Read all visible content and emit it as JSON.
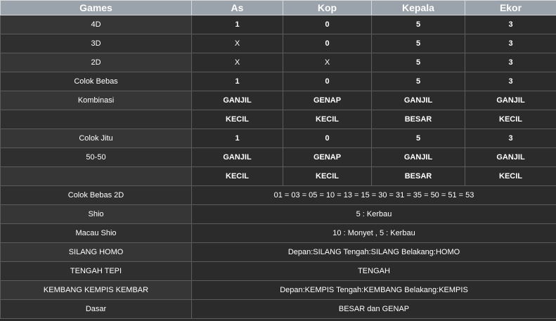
{
  "headers": [
    "Games",
    "As",
    "Kop",
    "Kepala",
    "Ekor"
  ],
  "rows": [
    {
      "game": "4D",
      "values": [
        "1",
        "0",
        "5",
        "3"
      ]
    },
    {
      "game": "3D",
      "values": [
        "X",
        "0",
        "5",
        "3"
      ]
    },
    {
      "game": "2D",
      "values": [
        "X",
        "X",
        "5",
        "3"
      ]
    },
    {
      "game": "Colok Bebas",
      "values": [
        "1",
        "0",
        "5",
        "3"
      ]
    },
    {
      "game": "Kombinasi",
      "values": [
        "GANJIL",
        "GENAP",
        "GANJIL",
        "GANJIL"
      ]
    },
    {
      "game": "",
      "values": [
        "KECIL",
        "KECIL",
        "BESAR",
        "KECIL"
      ]
    },
    {
      "game": "Colok Jitu",
      "values": [
        "1",
        "0",
        "5",
        "3"
      ]
    },
    {
      "game": "50-50",
      "values": [
        "GANJIL",
        "GENAP",
        "GANJIL",
        "GANJIL"
      ]
    },
    {
      "game": "",
      "values": [
        "KECIL",
        "KECIL",
        "BESAR",
        "KECIL"
      ]
    }
  ],
  "span_rows": [
    {
      "game": "Colok Bebas 2D",
      "value": "01 = 03 = 05 = 10 = 13 = 15 = 30 = 31 = 35 = 50 = 51 = 53"
    },
    {
      "game": "Shio",
      "value": "5 : Kerbau"
    },
    {
      "game": "Macau Shio",
      "value": "10 : Monyet , 5 : Kerbau"
    },
    {
      "game": "SILANG HOMO",
      "value": "Depan:SILANG Tengah:SILANG Belakang:HOMO"
    },
    {
      "game": "TENGAH TEPI",
      "value": "TENGAH"
    },
    {
      "game": "KEMBANG KEMPIS KEMBAR",
      "value": "Depan:KEMPIS Tengah:KEMBANG Belakang:KEMPIS"
    },
    {
      "game": "Dasar",
      "value": "BESAR dan GENAP"
    }
  ]
}
